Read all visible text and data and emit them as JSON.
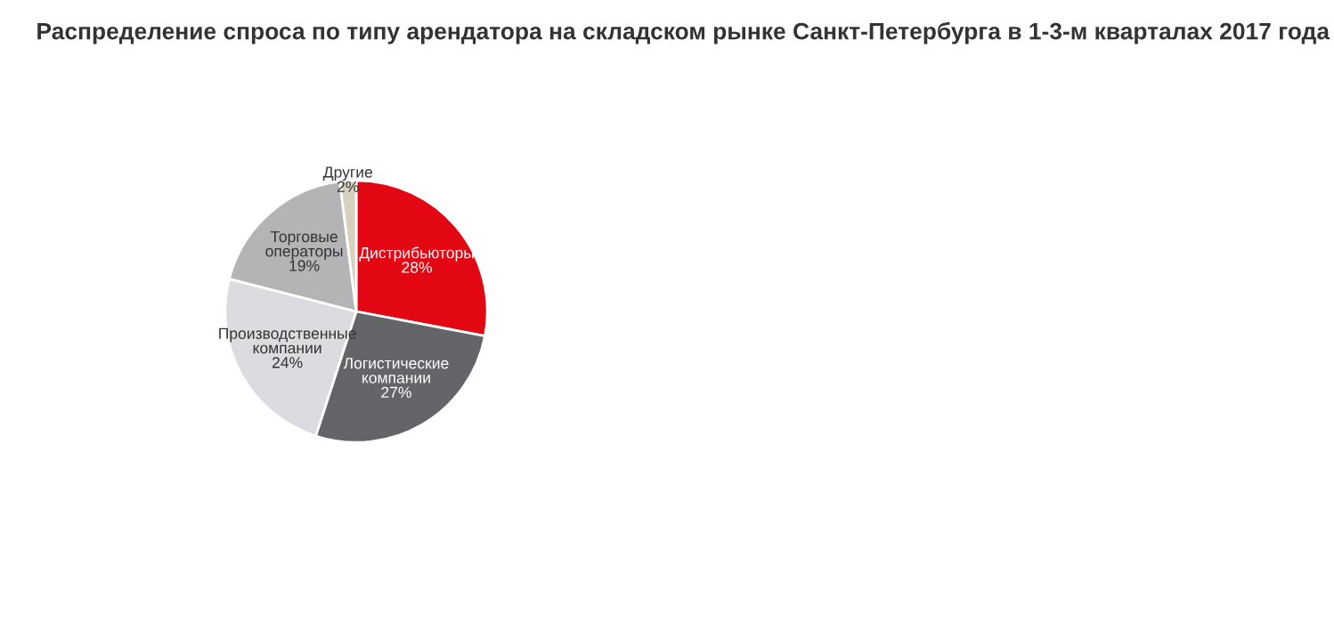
{
  "chart_data": {
    "type": "pie",
    "title": "Распределение спроса по типу арендатора на складском рынке Санкт-Петербурга в 1-3-м кварталах 2017 года",
    "categories": [
      "Дистрибьюторы",
      "Логистические\nкомпании",
      "Производственные\nкомпании",
      "Торговые\nоператоры",
      "Другие"
    ],
    "values": [
      28,
      27,
      24,
      19,
      2
    ],
    "value_labels": [
      "28%",
      "27%",
      "24%",
      "19%",
      "2%"
    ],
    "colors": [
      "#e30613",
      "#636569",
      "#dcdbe0",
      "#b4b4b7",
      "#d9d1bf"
    ],
    "legend": false
  }
}
